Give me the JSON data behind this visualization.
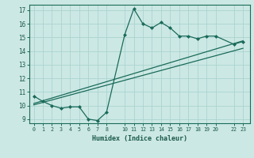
{
  "xlabel": "Humidex (Indice chaleur)",
  "bg_color": "#cce8e4",
  "grid_color": "#aad4d0",
  "line_color": "#1a6b5a",
  "x_ticks": [
    0,
    1,
    2,
    3,
    4,
    5,
    6,
    7,
    8,
    10,
    11,
    12,
    13,
    14,
    15,
    16,
    17,
    18,
    19,
    20,
    22,
    23
  ],
  "line1_x": [
    0,
    1,
    2,
    3,
    4,
    5,
    6,
    7,
    8,
    10,
    11,
    12,
    13,
    14,
    15,
    16,
    17,
    18,
    19,
    20,
    22,
    23
  ],
  "line1_y": [
    10.7,
    10.3,
    10.0,
    9.8,
    9.9,
    9.9,
    9.0,
    8.9,
    9.5,
    15.2,
    17.1,
    16.0,
    15.7,
    16.1,
    15.7,
    15.1,
    15.1,
    14.9,
    15.1,
    15.1,
    14.5,
    14.7
  ],
  "line2_x": [
    0,
    23
  ],
  "line2_y": [
    10.15,
    14.75
  ],
  "line3_x": [
    0,
    23
  ],
  "line3_y": [
    10.05,
    14.2
  ],
  "ylim": [
    8.7,
    17.4
  ],
  "xlim": [
    -0.5,
    23.8
  ]
}
